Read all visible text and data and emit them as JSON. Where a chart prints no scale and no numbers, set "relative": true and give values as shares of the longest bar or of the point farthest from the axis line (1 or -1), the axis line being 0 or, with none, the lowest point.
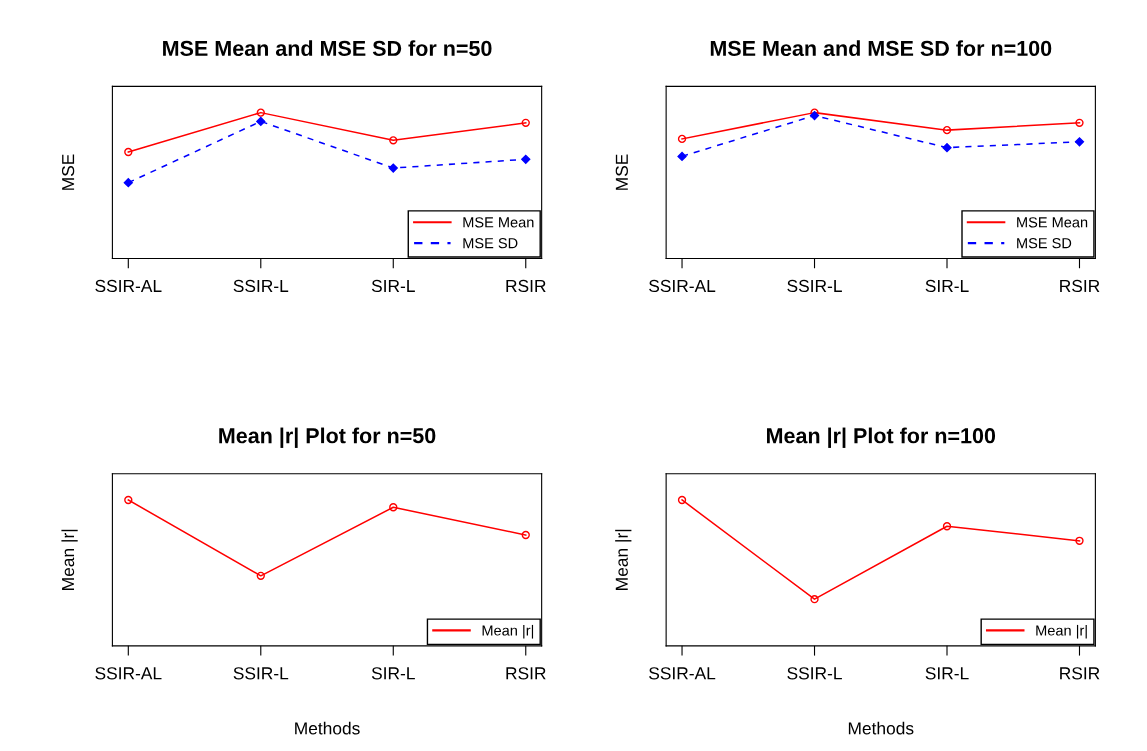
{
  "chart_data": [
    {
      "type": "line",
      "title": "MSE Mean and MSE SD for n=50",
      "ylabel": "MSE",
      "categories": [
        "SSIR-AL",
        "SSIR-L",
        "SIR-L",
        "RSIR"
      ],
      "relative": true,
      "legend": "bottom right",
      "grid": false,
      "series": [
        {
          "name": "MSE Mean",
          "color": "#ff0000",
          "marker": "circle",
          "line_style": "solid",
          "values": [
            0.73,
            1,
            0.81,
            0.93
          ]
        },
        {
          "name": "MSE SD",
          "color": "#0000ff",
          "marker": "diamond",
          "line_style": "dashed",
          "values": [
            0.52,
            0.94,
            0.62,
            0.68
          ]
        }
      ]
    },
    {
      "type": "line",
      "title": "MSE Mean and MSE SD for n=100",
      "ylabel": "MSE",
      "categories": [
        "SSIR-AL",
        "SSIR-L",
        "SIR-L",
        "RSIR"
      ],
      "relative": true,
      "legend": "bottom right",
      "grid": false,
      "series": [
        {
          "name": "MSE Mean",
          "color": "#ff0000",
          "marker": "circle",
          "line_style": "solid",
          "values": [
            0.82,
            1,
            0.88,
            0.93
          ]
        },
        {
          "name": "MSE SD",
          "color": "#0000ff",
          "marker": "diamond",
          "line_style": "dashed",
          "values": [
            0.7,
            0.98,
            0.76,
            0.8
          ]
        }
      ]
    },
    {
      "type": "line",
      "title": "Mean |r| Plot for n=50",
      "ylabel": "Mean |r|",
      "xlabel": "Methods",
      "categories": [
        "SSIR-AL",
        "SSIR-L",
        "SIR-L",
        "RSIR"
      ],
      "relative": true,
      "legend": "bottom right",
      "grid": false,
      "series": [
        {
          "name": "Mean |r|",
          "color": "#ff0000",
          "marker": "circle",
          "line_style": "solid",
          "values": [
            1,
            0.48,
            0.95,
            0.76
          ]
        }
      ]
    },
    {
      "type": "line",
      "title": "Mean |r| Plot for n=100",
      "ylabel": "Mean |r|",
      "xlabel": "Methods",
      "categories": [
        "SSIR-AL",
        "SSIR-L",
        "SIR-L",
        "RSIR"
      ],
      "relative": true,
      "legend": "bottom right",
      "grid": false,
      "series": [
        {
          "name": "Mean |r|",
          "color": "#ff0000",
          "marker": "circle",
          "line_style": "solid",
          "values": [
            1,
            0.32,
            0.82,
            0.72
          ]
        }
      ]
    }
  ]
}
